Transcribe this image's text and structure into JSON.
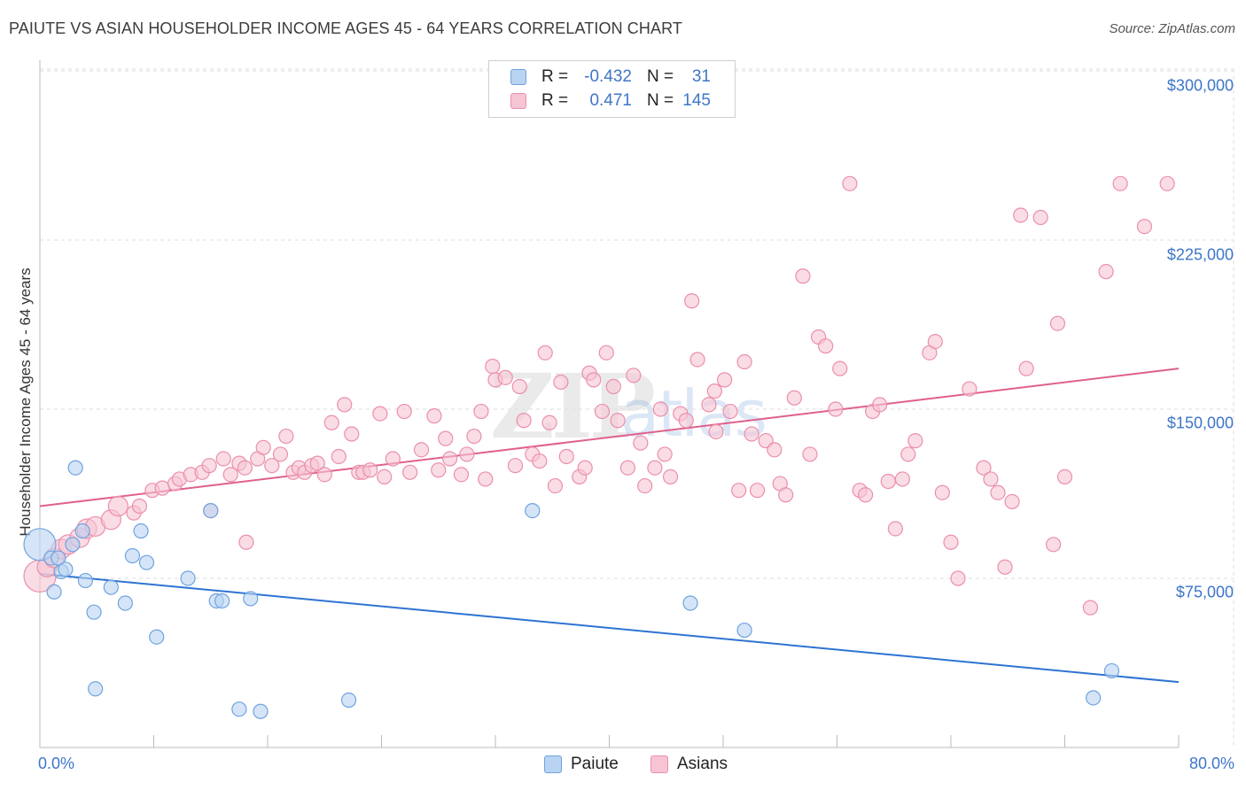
{
  "header": {
    "title": "PAIUTE VS ASIAN HOUSEHOLDER INCOME AGES 45 - 64 YEARS CORRELATION CHART",
    "source": "Source: ZipAtlas.com"
  },
  "watermark": {
    "text_zip": "ZIP",
    "text_atlas": "atlas"
  },
  "legend": {
    "rows": [
      {
        "r_label": "R =",
        "r_value": "-0.432",
        "n_label": "N =",
        "n_value": "31"
      },
      {
        "r_label": "R =",
        "r_value": "0.471",
        "n_label": "N =",
        "n_value": "145"
      }
    ]
  },
  "bottom_legend": {
    "paiute": "Paiute",
    "asians": "Asians"
  },
  "colors": {
    "paiute_fill": "#b9d3f2",
    "paiute_stroke": "#6fa3e0",
    "paiute_line": "#2e73d2",
    "asian_fill": "#f7c4d4",
    "asian_stroke": "#eb8fab",
    "asian_line": "#e0608b",
    "tick_text": "#3d76c9",
    "grid": "#dddddd"
  },
  "chart_data": {
    "type": "scatter",
    "title": "PAIUTE VS ASIAN HOUSEHOLDER INCOME AGES 45 - 64 YEARS CORRELATION CHART",
    "xlabel": "",
    "ylabel": "Householder Income Ages 45 - 64 years",
    "xlim": [
      0,
      80
    ],
    "ylim": [
      0,
      300000
    ],
    "x_tick_labels": [
      "0.0%",
      "80.0%"
    ],
    "y_ticks": [
      75000,
      150000,
      225000,
      300000
    ],
    "y_tick_labels": [
      "$75,000",
      "$150,000",
      "$225,000",
      "$300,000"
    ],
    "grid": true,
    "series": [
      {
        "name": "Paiute",
        "r": -0.432,
        "n": 31,
        "trendline": {
          "x": [
            0,
            80
          ],
          "y": [
            77000,
            29000
          ]
        },
        "points": [
          [
            0.0,
            90000,
            3
          ],
          [
            0.8,
            84000,
            1
          ],
          [
            1.0,
            69000,
            1
          ],
          [
            1.3,
            84000,
            1
          ],
          [
            1.5,
            78000,
            1
          ],
          [
            1.8,
            79000,
            1
          ],
          [
            2.3,
            90000,
            1
          ],
          [
            2.5,
            124000,
            1
          ],
          [
            3.0,
            96000,
            1
          ],
          [
            3.2,
            74000,
            1
          ],
          [
            3.8,
            60000,
            1
          ],
          [
            3.9,
            26000,
            1
          ],
          [
            5.0,
            71000,
            1
          ],
          [
            6.0,
            64000,
            1
          ],
          [
            6.5,
            85000,
            1
          ],
          [
            7.1,
            96000,
            1
          ],
          [
            7.5,
            82000,
            1
          ],
          [
            8.2,
            49000,
            1
          ],
          [
            10.4,
            75000,
            1
          ],
          [
            12.0,
            105000,
            1
          ],
          [
            12.4,
            65000,
            1
          ],
          [
            12.8,
            65000,
            1
          ],
          [
            14.0,
            17000,
            1
          ],
          [
            14.8,
            66000,
            1
          ],
          [
            15.5,
            16000,
            1
          ],
          [
            21.7,
            21000,
            1
          ],
          [
            34.6,
            105000,
            1
          ],
          [
            45.7,
            64000,
            1
          ],
          [
            49.5,
            52000,
            1
          ],
          [
            74.0,
            22000,
            1
          ],
          [
            75.3,
            34000,
            1
          ]
        ]
      },
      {
        "name": "Asians",
        "r": 0.471,
        "n": 145,
        "trendline": {
          "x": [
            0,
            80
          ],
          "y": [
            107000,
            168000
          ]
        },
        "points": [
          [
            0.0,
            76000,
            3
          ],
          [
            0.5,
            80000,
            2
          ],
          [
            1.0,
            84000,
            2
          ],
          [
            1.5,
            88000,
            2
          ],
          [
            2.0,
            90000,
            2
          ],
          [
            2.8,
            93000,
            2
          ],
          [
            3.3,
            97000,
            2
          ],
          [
            3.9,
            98000,
            2
          ],
          [
            5.0,
            101000,
            2
          ],
          [
            5.5,
            107000,
            2
          ],
          [
            6.6,
            104000,
            1
          ],
          [
            7.0,
            107000,
            1
          ],
          [
            7.9,
            114000,
            1
          ],
          [
            8.6,
            115000,
            1
          ],
          [
            9.5,
            117000,
            1
          ],
          [
            9.8,
            119000,
            1
          ],
          [
            10.6,
            121000,
            1
          ],
          [
            11.4,
            122000,
            1
          ],
          [
            11.9,
            125000,
            1
          ],
          [
            12.0,
            105000,
            1
          ],
          [
            12.9,
            128000,
            1
          ],
          [
            13.4,
            121000,
            1
          ],
          [
            14.0,
            126000,
            1
          ],
          [
            14.4,
            124000,
            1
          ],
          [
            14.5,
            91000,
            1
          ],
          [
            15.3,
            128000,
            1
          ],
          [
            15.7,
            133000,
            1
          ],
          [
            16.3,
            125000,
            1
          ],
          [
            16.9,
            130000,
            1
          ],
          [
            17.3,
            138000,
            1
          ],
          [
            17.8,
            122000,
            1
          ],
          [
            18.2,
            124000,
            1
          ],
          [
            18.6,
            122000,
            1
          ],
          [
            19.1,
            125000,
            1
          ],
          [
            19.5,
            126000,
            1
          ],
          [
            20.0,
            121000,
            1
          ],
          [
            20.5,
            144000,
            1
          ],
          [
            21.0,
            129000,
            1
          ],
          [
            21.4,
            152000,
            1
          ],
          [
            21.9,
            139000,
            1
          ],
          [
            22.4,
            122000,
            1
          ],
          [
            22.7,
            122000,
            1
          ],
          [
            23.2,
            123000,
            1
          ],
          [
            23.9,
            148000,
            1
          ],
          [
            24.2,
            120000,
            1
          ],
          [
            24.8,
            128000,
            1
          ],
          [
            25.6,
            149000,
            1
          ],
          [
            26.0,
            122000,
            1
          ],
          [
            26.8,
            132000,
            1
          ],
          [
            27.7,
            147000,
            1
          ],
          [
            28.0,
            123000,
            1
          ],
          [
            28.5,
            137000,
            1
          ],
          [
            28.8,
            128000,
            1
          ],
          [
            29.6,
            121000,
            1
          ],
          [
            30.0,
            130000,
            1
          ],
          [
            30.5,
            138000,
            1
          ],
          [
            31.0,
            149000,
            1
          ],
          [
            31.3,
            119000,
            1
          ],
          [
            31.8,
            169000,
            1
          ],
          [
            32.0,
            163000,
            1
          ],
          [
            32.7,
            164000,
            1
          ],
          [
            33.4,
            125000,
            1
          ],
          [
            33.7,
            160000,
            1
          ],
          [
            34.0,
            145000,
            1
          ],
          [
            34.6,
            130000,
            1
          ],
          [
            35.1,
            127000,
            1
          ],
          [
            35.5,
            175000,
            1
          ],
          [
            35.8,
            144000,
            1
          ],
          [
            36.2,
            116000,
            1
          ],
          [
            36.6,
            162000,
            1
          ],
          [
            37.0,
            129000,
            1
          ],
          [
            37.9,
            120000,
            1
          ],
          [
            38.3,
            124000,
            1
          ],
          [
            38.6,
            166000,
            1
          ],
          [
            38.9,
            163000,
            1
          ],
          [
            39.5,
            149000,
            1
          ],
          [
            39.8,
            175000,
            1
          ],
          [
            40.3,
            160000,
            1
          ],
          [
            40.6,
            145000,
            1
          ],
          [
            41.3,
            124000,
            1
          ],
          [
            41.7,
            165000,
            1
          ],
          [
            42.2,
            135000,
            1
          ],
          [
            42.5,
            116000,
            1
          ],
          [
            43.2,
            124000,
            1
          ],
          [
            43.6,
            150000,
            1
          ],
          [
            43.9,
            130000,
            1
          ],
          [
            44.3,
            120000,
            1
          ],
          [
            45.0,
            148000,
            1
          ],
          [
            45.4,
            145000,
            1
          ],
          [
            45.8,
            198000,
            1
          ],
          [
            46.2,
            172000,
            1
          ],
          [
            47.0,
            152000,
            1
          ],
          [
            47.4,
            158000,
            1
          ],
          [
            47.5,
            140000,
            1
          ],
          [
            48.1,
            163000,
            1
          ],
          [
            48.5,
            149000,
            1
          ],
          [
            49.1,
            114000,
            1
          ],
          [
            49.5,
            171000,
            1
          ],
          [
            50.0,
            139000,
            1
          ],
          [
            50.4,
            114000,
            1
          ],
          [
            51.0,
            136000,
            1
          ],
          [
            51.6,
            132000,
            1
          ],
          [
            52.0,
            117000,
            1
          ],
          [
            52.4,
            112000,
            1
          ],
          [
            53.0,
            155000,
            1
          ],
          [
            53.6,
            209000,
            1
          ],
          [
            54.1,
            130000,
            1
          ],
          [
            54.7,
            182000,
            1
          ],
          [
            55.2,
            178000,
            1
          ],
          [
            55.9,
            150000,
            1
          ],
          [
            56.2,
            168000,
            1
          ],
          [
            56.9,
            250000,
            1
          ],
          [
            57.6,
            114000,
            1
          ],
          [
            58.0,
            112000,
            1
          ],
          [
            58.5,
            149000,
            1
          ],
          [
            59.0,
            152000,
            1
          ],
          [
            59.6,
            118000,
            1
          ],
          [
            60.1,
            97000,
            1
          ],
          [
            60.6,
            119000,
            1
          ],
          [
            61.0,
            130000,
            1
          ],
          [
            61.5,
            136000,
            1
          ],
          [
            62.5,
            175000,
            1
          ],
          [
            62.9,
            180000,
            1
          ],
          [
            63.4,
            113000,
            1
          ],
          [
            64.0,
            91000,
            1
          ],
          [
            64.5,
            75000,
            1
          ],
          [
            65.3,
            159000,
            1
          ],
          [
            66.3,
            124000,
            1
          ],
          [
            66.8,
            119000,
            1
          ],
          [
            67.3,
            113000,
            1
          ],
          [
            67.8,
            80000,
            1
          ],
          [
            68.3,
            109000,
            1
          ],
          [
            68.9,
            236000,
            1
          ],
          [
            69.3,
            168000,
            1
          ],
          [
            70.3,
            235000,
            1
          ],
          [
            71.2,
            90000,
            1
          ],
          [
            71.5,
            188000,
            1
          ],
          [
            72.0,
            120000,
            1
          ],
          [
            73.8,
            62000,
            1
          ],
          [
            74.9,
            211000,
            1
          ],
          [
            75.9,
            250000,
            1
          ],
          [
            77.6,
            231000,
            1
          ],
          [
            79.2,
            250000,
            1
          ]
        ]
      }
    ]
  }
}
